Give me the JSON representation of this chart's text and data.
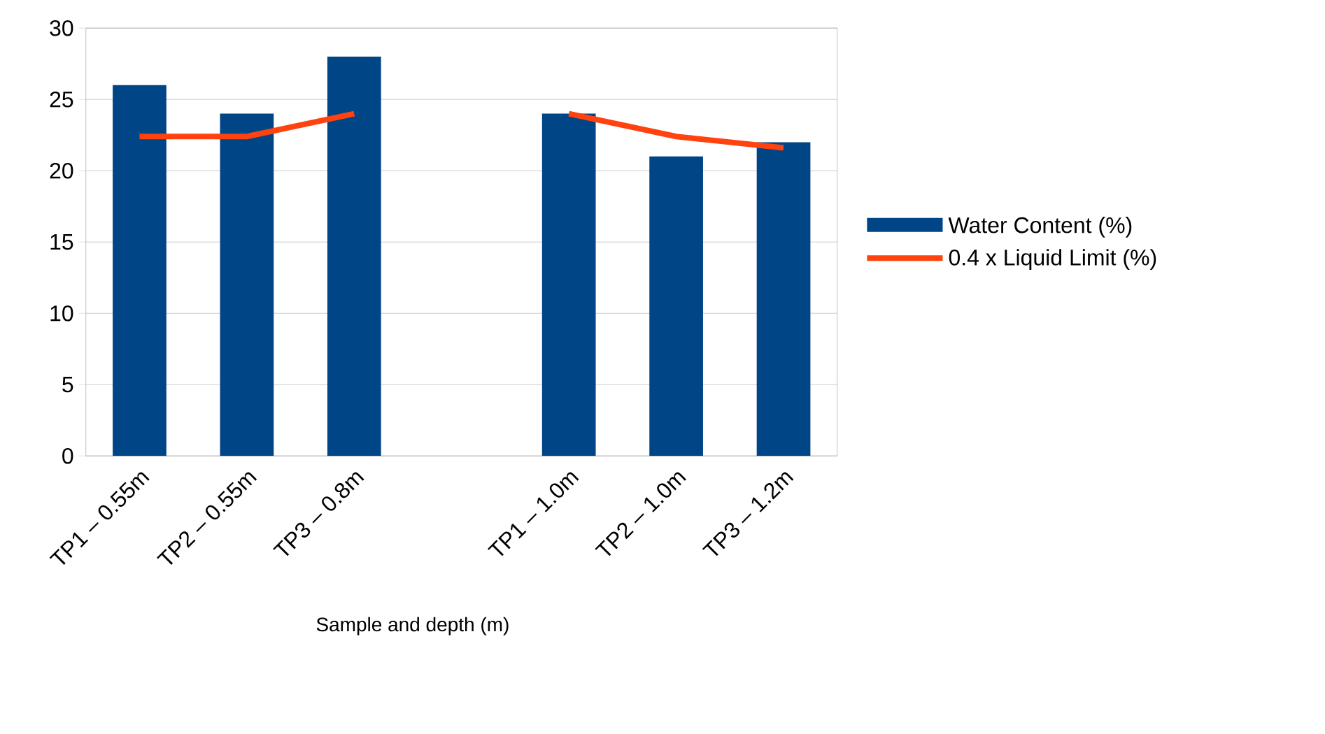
{
  "chart_data": {
    "type": "bar",
    "xlabel": "Sample and depth (m)",
    "categories": [
      "TP1 – 0.55m",
      "TP2 – 0.55m",
      "TP3 – 0.8m",
      null,
      "TP1 – 1.0m",
      "TP2 – 1.0m",
      "TP3 – 1.2m"
    ],
    "series": [
      {
        "name": "Water Content (%)",
        "color": "#004586",
        "values": [
          26,
          24,
          28,
          null,
          24,
          21,
          22
        ]
      },
      {
        "name": "0.4 x Liquid Limit (%)",
        "type": "line",
        "color": "#ff420e",
        "values": [
          22.4,
          22.4,
          24,
          null,
          24,
          22.4,
          21.6
        ]
      }
    ],
    "ylim": [
      0,
      30
    ],
    "yticks": [
      0,
      5,
      10,
      15,
      20,
      25,
      30
    ],
    "grid": "y",
    "legend": "right"
  }
}
